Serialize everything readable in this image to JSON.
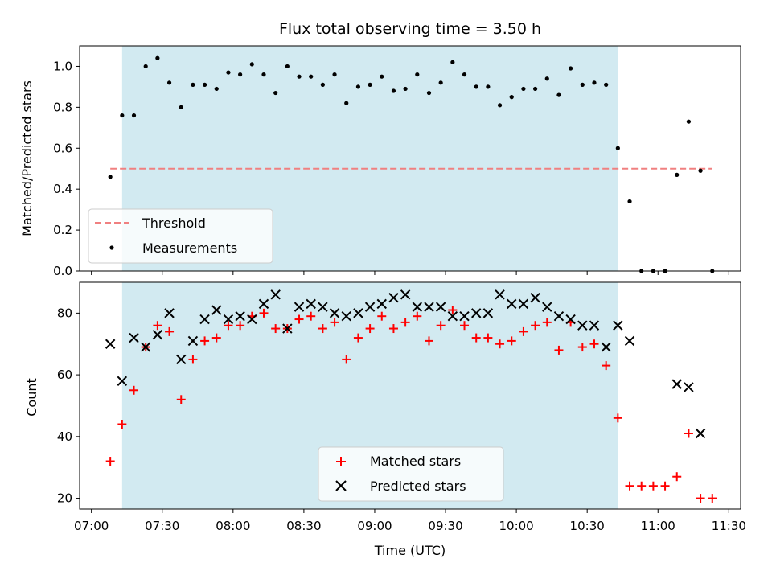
{
  "chart_data": {
    "type": "scatter",
    "title": "Flux total observing time = 3.50 h",
    "xlabel": "Time (UTC)",
    "x_ticks": [
      "07:00",
      "07:30",
      "08:00",
      "08:30",
      "09:00",
      "09:30",
      "10:00",
      "10:30",
      "11:00",
      "11:30"
    ],
    "xlim": [
      "06:55",
      "11:35"
    ],
    "shaded_span": {
      "start": "07:13",
      "end": "10:43",
      "color": "#add8e6"
    },
    "top": {
      "ylabel": "Matched/Predicted stars",
      "ylim": [
        0,
        1.1
      ],
      "y_ticks": [
        "0.0",
        "0.2",
        "0.4",
        "0.6",
        "0.8",
        "1.0"
      ],
      "threshold": {
        "name": "Threshold",
        "value": 0.5,
        "x_start": "07:08",
        "x_end": "11:23",
        "color": "#f08080"
      },
      "measurements": {
        "name": "Measurements",
        "color": "#000000",
        "x": [
          "07:08",
          "07:13",
          "07:18",
          "07:23",
          "07:28",
          "07:33",
          "07:38",
          "07:43",
          "07:48",
          "07:53",
          "07:58",
          "08:03",
          "08:08",
          "08:13",
          "08:18",
          "08:23",
          "08:28",
          "08:33",
          "08:38",
          "08:43",
          "08:48",
          "08:53",
          "08:58",
          "09:03",
          "09:08",
          "09:13",
          "09:18",
          "09:23",
          "09:28",
          "09:33",
          "09:38",
          "09:43",
          "09:48",
          "09:53",
          "09:58",
          "10:03",
          "10:08",
          "10:13",
          "10:18",
          "10:23",
          "10:28",
          "10:33",
          "10:38",
          "10:43",
          "10:48",
          "10:53",
          "10:58",
          "11:03",
          "11:08",
          "11:13",
          "11:18",
          "11:23"
        ],
        "y": [
          0.46,
          0.76,
          0.76,
          1.0,
          1.04,
          0.92,
          0.8,
          0.91,
          0.91,
          0.89,
          0.97,
          0.96,
          1.01,
          0.96,
          0.87,
          1.0,
          0.95,
          0.95,
          0.91,
          0.96,
          0.82,
          0.9,
          0.91,
          0.95,
          0.88,
          0.89,
          0.96,
          0.87,
          0.92,
          1.02,
          0.96,
          0.9,
          0.9,
          0.81,
          0.85,
          0.89,
          0.89,
          0.94,
          0.86,
          0.99,
          0.91,
          0.92,
          0.91,
          0.6,
          0.34,
          0.0,
          0.0,
          0.0,
          0.47,
          0.73,
          0.49,
          0.0
        ]
      },
      "legend": {
        "position": "lower left"
      }
    },
    "bottom": {
      "ylabel": "Count",
      "ylim": [
        16.5,
        90
      ],
      "y_ticks": [
        "20",
        "40",
        "60",
        "80"
      ],
      "series": [
        {
          "name": "Matched stars",
          "marker": "plus",
          "color": "#ff0000",
          "x": [
            "07:08",
            "07:13",
            "07:18",
            "07:23",
            "07:28",
            "07:33",
            "07:38",
            "07:43",
            "07:48",
            "07:53",
            "07:58",
            "08:03",
            "08:08",
            "08:13",
            "08:18",
            "08:23",
            "08:28",
            "08:33",
            "08:38",
            "08:43",
            "08:48",
            "08:53",
            "08:58",
            "09:03",
            "09:08",
            "09:13",
            "09:18",
            "09:23",
            "09:28",
            "09:33",
            "09:38",
            "09:43",
            "09:48",
            "09:53",
            "09:58",
            "10:03",
            "10:08",
            "10:13",
            "10:18",
            "10:23",
            "10:28",
            "10:33",
            "10:38",
            "10:43",
            "10:48",
            "10:53",
            "10:58",
            "11:03",
            "11:08",
            "11:13",
            "11:18",
            "11:23"
          ],
          "y": [
            32,
            44,
            55,
            69,
            76,
            74,
            52,
            65,
            71,
            72,
            76,
            76,
            79,
            80,
            75,
            75,
            78,
            79,
            75,
            77,
            65,
            72,
            75,
            79,
            75,
            77,
            79,
            71,
            76,
            81,
            76,
            72,
            72,
            70,
            71,
            74,
            76,
            77,
            68,
            77,
            69,
            70,
            63,
            46,
            24,
            24,
            24,
            24,
            27,
            41,
            20,
            20
          ]
        },
        {
          "name": "Predicted stars",
          "marker": "x",
          "color": "#000000",
          "x": [
            "07:08",
            "07:13",
            "07:18",
            "07:23",
            "07:28",
            "07:33",
            "07:38",
            "07:43",
            "07:48",
            "07:53",
            "07:58",
            "08:03",
            "08:08",
            "08:13",
            "08:18",
            "08:23",
            "08:28",
            "08:33",
            "08:38",
            "08:43",
            "08:48",
            "08:53",
            "08:58",
            "09:03",
            "09:08",
            "09:13",
            "09:18",
            "09:23",
            "09:28",
            "09:33",
            "09:38",
            "09:43",
            "09:48",
            "09:53",
            "09:58",
            "10:03",
            "10:08",
            "10:13",
            "10:18",
            "10:23",
            "10:28",
            "10:33",
            "10:38",
            "10:43",
            "10:48",
            "11:08",
            "11:13",
            "11:18"
          ],
          "y": [
            70,
            58,
            72,
            69,
            73,
            80,
            65,
            71,
            78,
            81,
            78,
            79,
            78,
            83,
            86,
            75,
            82,
            83,
            82,
            80,
            79,
            80,
            82,
            83,
            85,
            86,
            82,
            82,
            82,
            79,
            79,
            80,
            80,
            86,
            83,
            83,
            85,
            82,
            79,
            78,
            76,
            76,
            69,
            76,
            71,
            57,
            56,
            41
          ]
        }
      ],
      "legend": {
        "position": "lower center"
      }
    }
  }
}
